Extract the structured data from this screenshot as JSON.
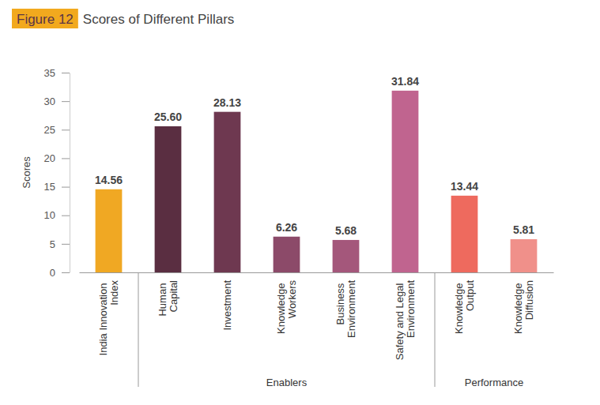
{
  "chart_data": {
    "type": "bar",
    "figure_label": "Figure 12",
    "title": "Scores of Different Pillars",
    "y_label": "Scores",
    "categories": [
      "India Innovation Index",
      "Human Capital",
      "Investment",
      "Knowledge Workers",
      "Business Environment",
      "Safety and Legal Environment",
      "Knowledge Output",
      "Knowledge Diffusion"
    ],
    "category_groups": [
      null,
      "Enablers",
      "Enablers",
      "Enablers",
      "Enablers",
      "Enablers",
      "Performance",
      "Performance"
    ],
    "values": [
      14.56,
      25.6,
      28.13,
      6.26,
      5.68,
      31.84,
      13.44,
      5.81
    ],
    "value_labels": [
      "14.56",
      "25.60",
      "28.13",
      "6.26",
      "5.68",
      "31.84",
      "13.44",
      "5.81"
    ],
    "colors": [
      "#f0a823",
      "#5a2e41",
      "#6e3850",
      "#8c4a69",
      "#a4577b",
      "#c0648f",
      "#ee6a5e",
      "#f0908a"
    ],
    "ylim": [
      0,
      35
    ],
    "yticks": [
      0,
      5,
      10,
      15,
      20,
      25,
      30,
      35
    ],
    "grid": false,
    "data_labels": true
  }
}
